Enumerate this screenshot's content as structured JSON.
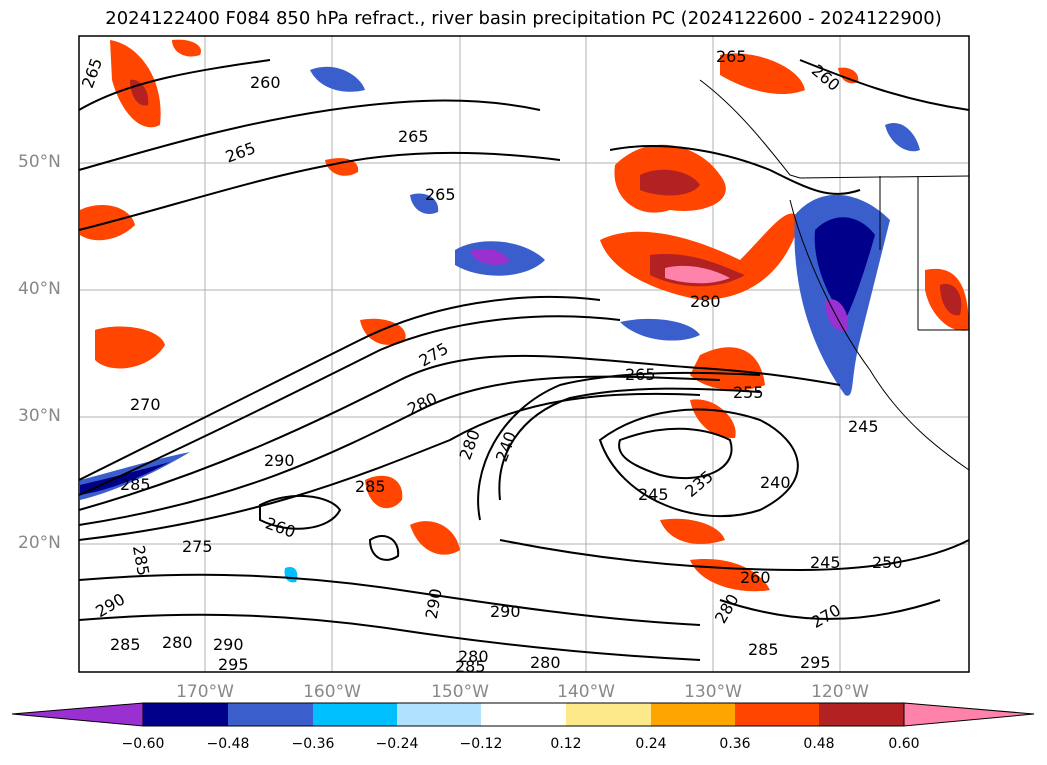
{
  "title": "2024122400 F084 850 hPa refract., river basin precipitation PC (2024122600 - 2024122900)",
  "latitude_labels": [
    "50°N",
    "40°N",
    "30°N",
    "20°N"
  ],
  "longitude_labels": [
    "170°W",
    "160°W",
    "150°W",
    "140°W",
    "130°W",
    "120°W"
  ],
  "contour_labels": [
    "265",
    "260",
    "265",
    "265",
    "265",
    "265",
    "260",
    "270",
    "275",
    "280",
    "280",
    "280",
    "265",
    "255",
    "245",
    "240",
    "235",
    "245",
    "240",
    "245",
    "250",
    "260",
    "270",
    "280",
    "285",
    "290",
    "295",
    "290",
    "285",
    "280",
    "285",
    "275",
    "260",
    "285",
    "290",
    "285",
    "280",
    "290",
    "295",
    "290",
    "285",
    "280"
  ],
  "colorbar": {
    "ticks": [
      "−0.60",
      "−0.48",
      "−0.36",
      "−0.24",
      "−0.12",
      "0.12",
      "0.24",
      "0.36",
      "0.48",
      "0.60"
    ],
    "colors": [
      "#9b30d0",
      "#00008b",
      "#3a5fcd",
      "#00bfff",
      "#b0e2ff",
      "#ffffff",
      "#fde88a",
      "#ffa500",
      "#ff4500",
      "#b22222",
      "#ff82ab"
    ],
    "extend": "both"
  },
  "colors": {
    "frame": "#000000",
    "grid": "#b0b0b0",
    "tick_label": "#888888"
  }
}
